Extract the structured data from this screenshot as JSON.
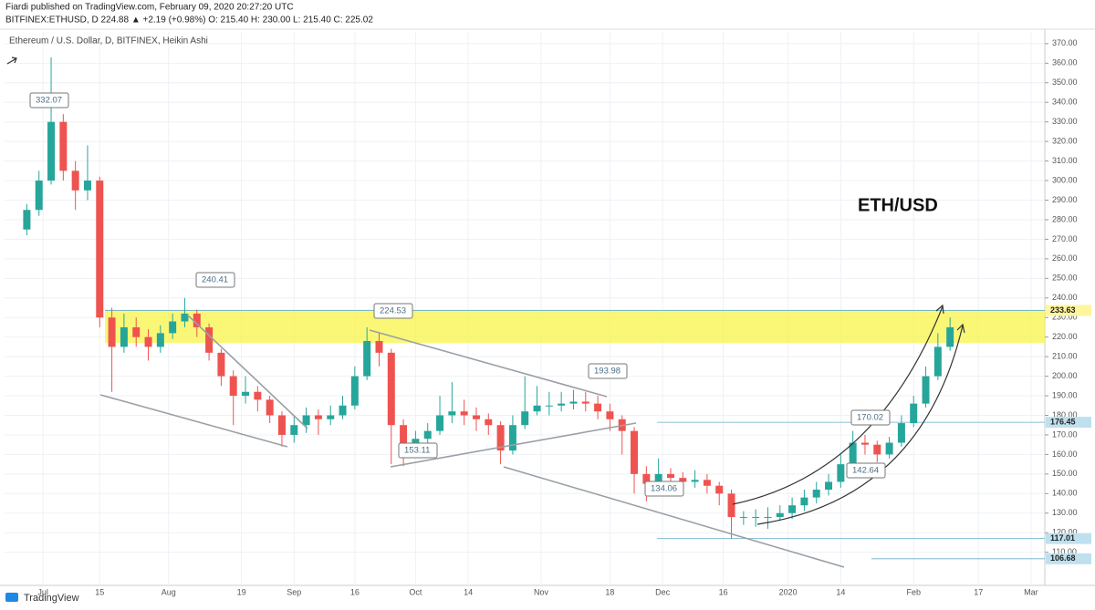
{
  "chart_data": {
    "type": "candlestick",
    "publisher": "Fiardi published on TradingView.com, February 09, 2020 20:27:20 UTC",
    "symbol_info": "BITFINEX:ETHUSD, D 224.88 ▲ +2.19 (+0.98%) O: 215.40 H: 230.00 L: 215.40 C: 225.02",
    "subtitle": "Ethereum / U.S. Dollar, D, BITFINEX, Heikin Ashi",
    "title": "ETH/USD",
    "footer": "TradingView",
    "up_color": "#26a69a",
    "down_color": "#ef5350",
    "x": [
      0,
      3,
      6,
      9,
      12,
      15,
      18,
      21,
      24,
      27,
      30,
      33,
      36,
      39,
      42,
      45,
      48,
      51,
      54,
      57,
      60,
      63,
      66,
      69,
      72,
      75,
      78,
      81,
      84,
      87,
      90,
      93,
      96,
      99,
      102,
      105,
      108,
      111,
      114,
      117,
      120,
      123,
      126,
      129,
      132,
      135,
      138,
      141,
      144,
      147,
      150,
      153,
      156,
      159,
      162,
      165,
      168,
      171,
      174,
      177,
      180,
      183,
      186,
      189,
      192,
      195,
      198,
      201,
      204,
      207,
      210,
      213,
      216,
      219,
      222,
      225,
      228
    ],
    "candles": [
      [
        275,
        288,
        272,
        285
      ],
      [
        285,
        305,
        282,
        300
      ],
      [
        300,
        363,
        298,
        330
      ],
      [
        330,
        334,
        300,
        305
      ],
      [
        305,
        310,
        285,
        295
      ],
      [
        295,
        318,
        290,
        300
      ],
      [
        300,
        302,
        225,
        230
      ],
      [
        230,
        235,
        192,
        215
      ],
      [
        215,
        232,
        212,
        225
      ],
      [
        225,
        230,
        215,
        220
      ],
      [
        220,
        224,
        208,
        215
      ],
      [
        215,
        226,
        212,
        222
      ],
      [
        222,
        232,
        219,
        228
      ],
      [
        228,
        240,
        225,
        232
      ],
      [
        232,
        234,
        220,
        225
      ],
      [
        225,
        227,
        208,
        212
      ],
      [
        212,
        214,
        195,
        200
      ],
      [
        200,
        203,
        175,
        190
      ],
      [
        190,
        200,
        186,
        192
      ],
      [
        192,
        195,
        182,
        188
      ],
      [
        188,
        190,
        176,
        180
      ],
      [
        180,
        182,
        164,
        170
      ],
      [
        170,
        180,
        166,
        175
      ],
      [
        175,
        184,
        171,
        180
      ],
      [
        180,
        183,
        170,
        178
      ],
      [
        178,
        185,
        175,
        180
      ],
      [
        180,
        190,
        178,
        185
      ],
      [
        185,
        205,
        183,
        200
      ],
      [
        200,
        225,
        198,
        218
      ],
      [
        218,
        222,
        205,
        212
      ],
      [
        212,
        214,
        155,
        175
      ],
      [
        175,
        178,
        154,
        165
      ],
      [
        165,
        172,
        160,
        168
      ],
      [
        168,
        176,
        164,
        172
      ],
      [
        172,
        190,
        170,
        180
      ],
      [
        180,
        197,
        176,
        182
      ],
      [
        182,
        188,
        175,
        180
      ],
      [
        180,
        184,
        172,
        178
      ],
      [
        178,
        181,
        170,
        175
      ],
      [
        175,
        177,
        155,
        162
      ],
      [
        162,
        180,
        160,
        175
      ],
      [
        175,
        200,
        173,
        182
      ],
      [
        182,
        195,
        180,
        185
      ],
      [
        185,
        192,
        180,
        185
      ],
      [
        185,
        192,
        182,
        186
      ],
      [
        186,
        193,
        183,
        187
      ],
      [
        187,
        192,
        182,
        186
      ],
      [
        186,
        190,
        178,
        182
      ],
      [
        182,
        186,
        172,
        178
      ],
      [
        178,
        180,
        160,
        172
      ],
      [
        172,
        174,
        140,
        150
      ],
      [
        150,
        154,
        136,
        145
      ],
      [
        145,
        158,
        143,
        150
      ],
      [
        150,
        153,
        144,
        148
      ],
      [
        148,
        151,
        142,
        146
      ],
      [
        146,
        152,
        143,
        147
      ],
      [
        147,
        150,
        140,
        144
      ],
      [
        144,
        146,
        134,
        140
      ],
      [
        140,
        142,
        117,
        128
      ],
      [
        128,
        131,
        124,
        128
      ],
      [
        128,
        132,
        123,
        128
      ],
      [
        128,
        133,
        122,
        128
      ],
      [
        128,
        134,
        126,
        130
      ],
      [
        130,
        138,
        127,
        134
      ],
      [
        134,
        142,
        131,
        138
      ],
      [
        138,
        146,
        135,
        142
      ],
      [
        142,
        150,
        139,
        146
      ],
      [
        146,
        160,
        143,
        155
      ],
      [
        155,
        172,
        153,
        166
      ],
      [
        166,
        170,
        160,
        165
      ],
      [
        165,
        167,
        156,
        160
      ],
      [
        160,
        169,
        158,
        166
      ],
      [
        166,
        180,
        164,
        176
      ],
      [
        176,
        190,
        174,
        186
      ],
      [
        186,
        205,
        184,
        200
      ],
      [
        200,
        222,
        198,
        215
      ],
      [
        215,
        230,
        213,
        225
      ]
    ],
    "xlim": [
      -5.5,
      251.4
    ],
    "xticks": [
      {
        "value": 4,
        "label": "Jul"
      },
      {
        "value": 18,
        "label": "15"
      },
      {
        "value": 35,
        "label": "Aug"
      },
      {
        "value": 53,
        "label": "19"
      },
      {
        "value": 66,
        "label": "Sep"
      },
      {
        "value": 81,
        "label": "16"
      },
      {
        "value": 96,
        "label": "Oct"
      },
      {
        "value": 109,
        "label": "14"
      },
      {
        "value": 127,
        "label": "Nov"
      },
      {
        "value": 144,
        "label": "18"
      },
      {
        "value": 157,
        "label": "Dec"
      },
      {
        "value": 172,
        "label": "16"
      },
      {
        "value": 188,
        "label": "2020"
      },
      {
        "value": 201,
        "label": "14"
      },
      {
        "value": 219,
        "label": "Feb"
      },
      {
        "value": 235,
        "label": "17"
      },
      {
        "value": 248,
        "label": "Mar"
      }
    ],
    "ylim": [
      94,
      376
    ],
    "yticks": [
      {
        "value": 110,
        "label": "110.00"
      },
      {
        "value": 120,
        "label": "120.00"
      },
      {
        "value": 130,
        "label": "130.00"
      },
      {
        "value": 140,
        "label": "140.00"
      },
      {
        "value": 150,
        "label": "150.00"
      },
      {
        "value": 160,
        "label": "160.00"
      },
      {
        "value": 170,
        "label": "170.00"
      },
      {
        "value": 180,
        "label": "180.00"
      },
      {
        "value": 190,
        "label": "190.00"
      },
      {
        "value": 200,
        "label": "200.00"
      },
      {
        "value": 210,
        "label": "210.00"
      },
      {
        "value": 220,
        "label": "220.00"
      },
      {
        "value": 230,
        "label": "230.00"
      },
      {
        "value": 240,
        "label": "240.00"
      },
      {
        "value": 250,
        "label": "250.00"
      },
      {
        "value": 260,
        "label": "260.00"
      },
      {
        "value": 270,
        "label": "270.00"
      },
      {
        "value": 280,
        "label": "280.00"
      },
      {
        "value": 290,
        "label": "290.00"
      },
      {
        "value": 300,
        "label": "300.00"
      },
      {
        "value": 310,
        "label": "310.00"
      },
      {
        "value": 320,
        "label": "320.00"
      },
      {
        "value": 330,
        "label": "330.00"
      },
      {
        "value": 340,
        "label": "340.00"
      },
      {
        "value": 350,
        "label": "350.00"
      },
      {
        "value": 360,
        "label": "360.00"
      },
      {
        "value": 370,
        "label": "370.00"
      }
    ],
    "grid": true,
    "zone": {
      "low": 217,
      "high": 234,
      "color": "#f8f44a"
    },
    "price_labels": [
      {
        "value": 233.63,
        "color": "#fff59d"
      },
      {
        "value": 176.45,
        "color": "#bfe0ee"
      },
      {
        "value": 117.01,
        "color": "#bfe0ee"
      },
      {
        "value": 106.68,
        "color": "#bfe0ee"
      }
    ],
    "annotations": [
      332.07,
      240.41,
      224.53,
      193.98,
      153.11,
      134.06,
      170.02,
      142.64
    ]
  }
}
